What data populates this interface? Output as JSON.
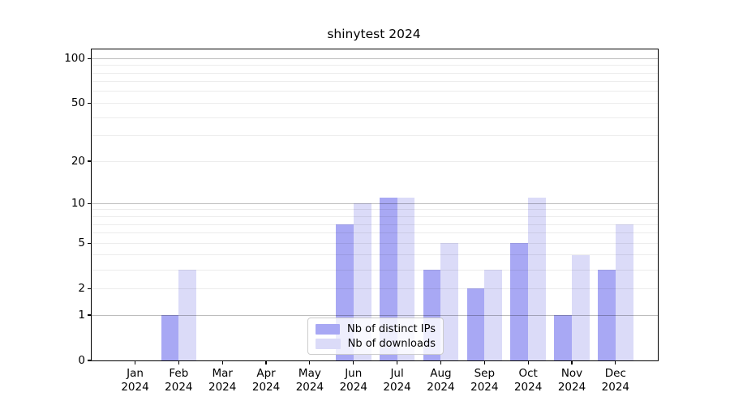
{
  "chart_data": {
    "type": "bar",
    "title": "shinytest 2024",
    "categories": [
      {
        "month": "Jan",
        "year": "2024"
      },
      {
        "month": "Feb",
        "year": "2024"
      },
      {
        "month": "Mar",
        "year": "2024"
      },
      {
        "month": "Apr",
        "year": "2024"
      },
      {
        "month": "May",
        "year": "2024"
      },
      {
        "month": "Jun",
        "year": "2024"
      },
      {
        "month": "Jul",
        "year": "2024"
      },
      {
        "month": "Aug",
        "year": "2024"
      },
      {
        "month": "Sep",
        "year": "2024"
      },
      {
        "month": "Oct",
        "year": "2024"
      },
      {
        "month": "Nov",
        "year": "2024"
      },
      {
        "month": "Dec",
        "year": "2024"
      }
    ],
    "series": [
      {
        "key": "ips",
        "name": "Nb of distinct IPs",
        "color": "#a8a8f4",
        "values": [
          0,
          1,
          0,
          0,
          0,
          7,
          11,
          3,
          2,
          5,
          1,
          3
        ]
      },
      {
        "key": "downloads",
        "name": "Nb of downloads",
        "color": "#dbdbf8",
        "values": [
          0,
          3,
          0,
          0,
          0,
          10,
          11,
          5,
          3,
          11,
          4,
          7
        ]
      }
    ],
    "xlabel": "",
    "ylabel": "",
    "yscale": "log1p",
    "ylim": [
      0,
      115
    ],
    "yticks": [
      0,
      1,
      2,
      5,
      10,
      20,
      50,
      100
    ],
    "grid": {
      "major": [
        1,
        10,
        100
      ],
      "minor": [
        2,
        3,
        4,
        5,
        6,
        7,
        8,
        9,
        20,
        30,
        40,
        50,
        60,
        70,
        80,
        90
      ]
    },
    "legend_position": "bottom-center",
    "colors": {
      "axis": "#000000",
      "grid_major": "#bdbdbd",
      "grid_minor": "#ebebeb",
      "background": "#ffffff"
    }
  }
}
